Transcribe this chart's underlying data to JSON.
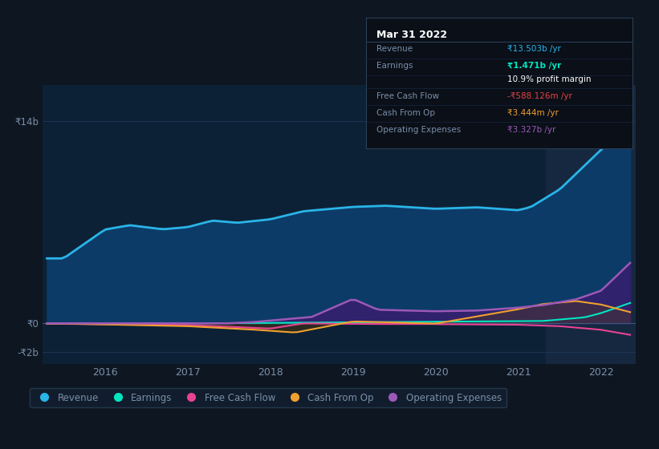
{
  "bg_color": "#0e1621",
  "plot_bg_color": "#0d2136",
  "highlight_bg_color": "#162840",
  "grid_color": "#1e3a5a",
  "text_color": "#7a8fa8",
  "title_color": "#ffffff",
  "ylim": [
    -2.8,
    16.5
  ],
  "xtick_labels": [
    "2016",
    "2017",
    "2018",
    "2019",
    "2020",
    "2021",
    "2022"
  ],
  "series_colors": {
    "Revenue": "#29b5e8",
    "Earnings": "#00e5c0",
    "Free_Cash_Flow": "#e84393",
    "Cash_From_Op": "#f0a030",
    "Operating_Expenses": "#9b59b6"
  },
  "legend_labels": [
    "Revenue",
    "Earnings",
    "Free Cash Flow",
    "Cash From Op",
    "Operating Expenses"
  ],
  "legend_colors": [
    "#29b5e8",
    "#00e5c0",
    "#e84393",
    "#f0a030",
    "#9b59b6"
  ],
  "tooltip_bg": "#0a0f18",
  "tooltip_border": "#2a3f55",
  "tooltip_title": "Mar 31 2022",
  "n_points": 120
}
